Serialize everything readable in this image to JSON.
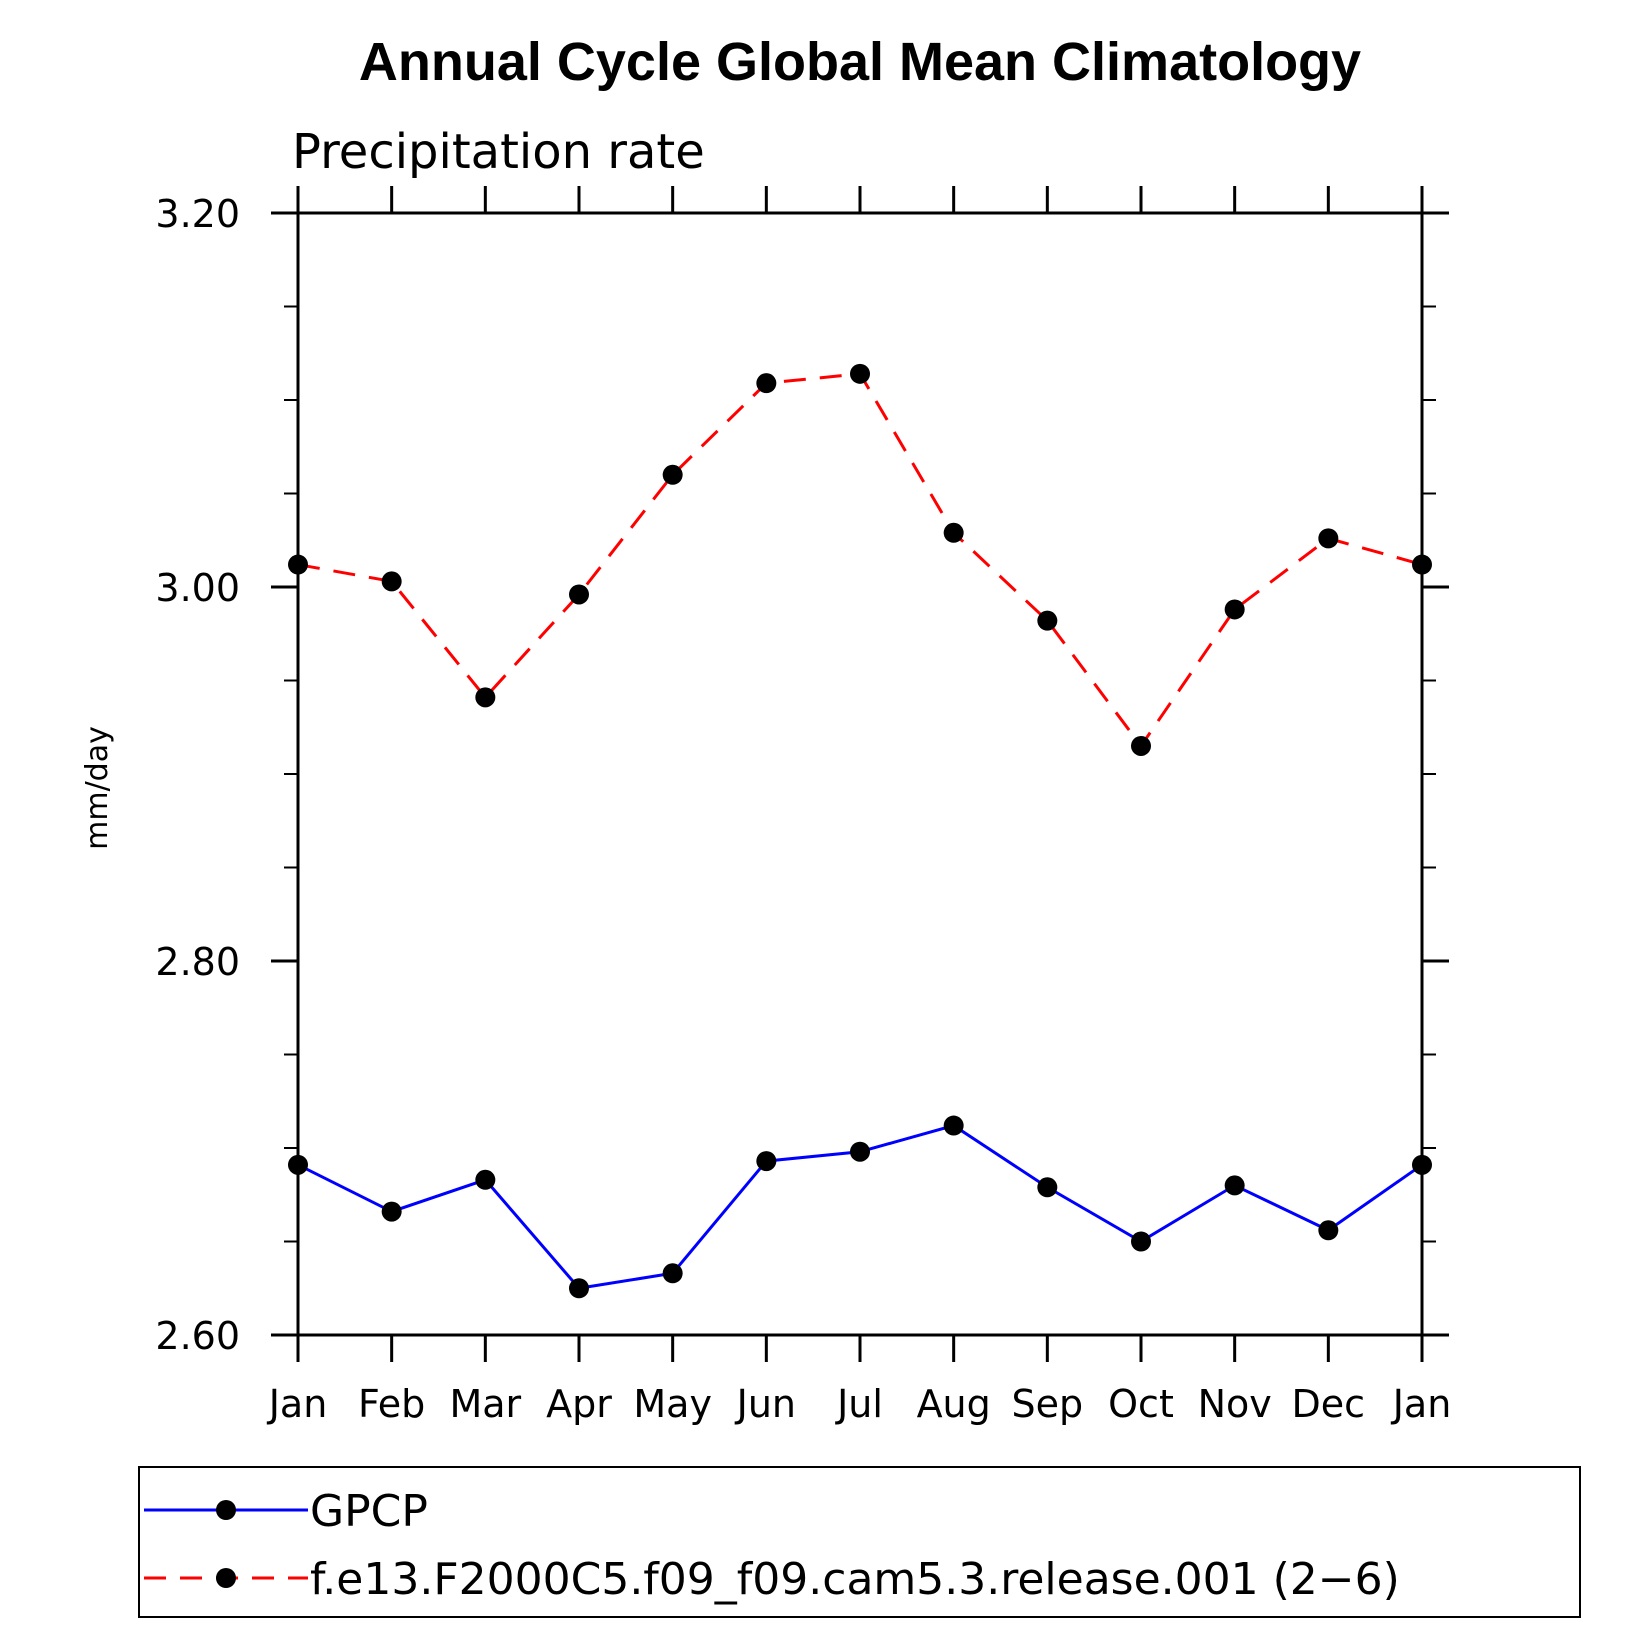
{
  "chart_data": {
    "type": "line",
    "title": "Annual Cycle Global Mean Climatology",
    "subtitle": "Precipitation rate",
    "xlabel": "",
    "ylabel": "mm/day",
    "categories": [
      "Jan",
      "Feb",
      "Mar",
      "Apr",
      "May",
      "Jun",
      "Jul",
      "Aug",
      "Sep",
      "Oct",
      "Nov",
      "Dec",
      "Jan"
    ],
    "ylim": [
      2.6,
      3.2
    ],
    "yticks_major": [
      2.6,
      2.8,
      3.0,
      3.2
    ],
    "ytick_labels": [
      "2.60",
      "2.80",
      "3.00",
      "3.20"
    ],
    "yticks_minor_step": 0.05,
    "grid": false,
    "legend_position": "bottom",
    "series": [
      {
        "name": "GPCP",
        "color": "#0000ff",
        "line_style": "solid",
        "marker": "filled-circle",
        "values": [
          2.691,
          2.666,
          2.683,
          2.625,
          2.633,
          2.693,
          2.698,
          2.712,
          2.679,
          2.65,
          2.68,
          2.656,
          2.691
        ]
      },
      {
        "name": "f.e13.F2000C5.f09_f09.cam5.3.release.001 (2−6)",
        "color": "#ff0000",
        "line_style": "dashed",
        "marker": "filled-circle",
        "values": [
          3.012,
          3.003,
          2.941,
          2.996,
          3.06,
          3.109,
          3.114,
          3.029,
          2.982,
          2.915,
          2.988,
          3.026,
          3.012
        ]
      }
    ]
  }
}
